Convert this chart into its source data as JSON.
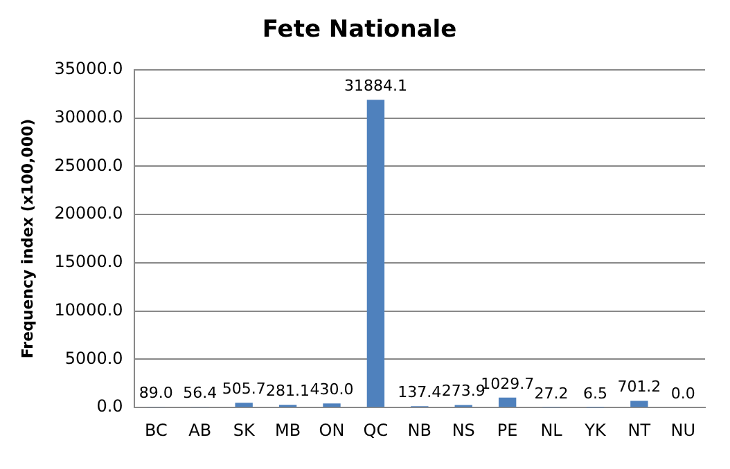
{
  "chart_data": {
    "type": "bar",
    "title": "Fete Nationale",
    "ylabel": "Frequency index (x100,000)",
    "categories": [
      "BC",
      "AB",
      "SK",
      "MB",
      "ON",
      "QC",
      "NB",
      "NS",
      "PE",
      "NL",
      "YK",
      "NT",
      "NU"
    ],
    "values": [
      89.0,
      56.4,
      505.7,
      281.1,
      430.0,
      31884.1,
      137.4,
      273.9,
      1029.7,
      27.2,
      6.5,
      701.2,
      0.0
    ],
    "value_labels": [
      "89.0",
      "56.4",
      "505.7",
      "281.1",
      "430.0",
      "31884.1",
      "137.4",
      "273.9",
      "1029.7",
      "27.2",
      "6.5",
      "701.2",
      "0.0"
    ],
    "color": "#4f81bd",
    "ylim": [
      0,
      35000
    ],
    "yticks": [
      {
        "value": 0,
        "label": "0.0"
      },
      {
        "value": 5000,
        "label": "5000.0"
      },
      {
        "value": 10000,
        "label": "10000.0"
      },
      {
        "value": 15000,
        "label": "15000.0"
      },
      {
        "value": 20000,
        "label": "20000.0"
      },
      {
        "value": 25000,
        "label": "25000.0"
      },
      {
        "value": 30000,
        "label": "30000.0"
      },
      {
        "value": 35000,
        "label": "35000.0"
      }
    ],
    "grid": "y",
    "legend": false
  }
}
